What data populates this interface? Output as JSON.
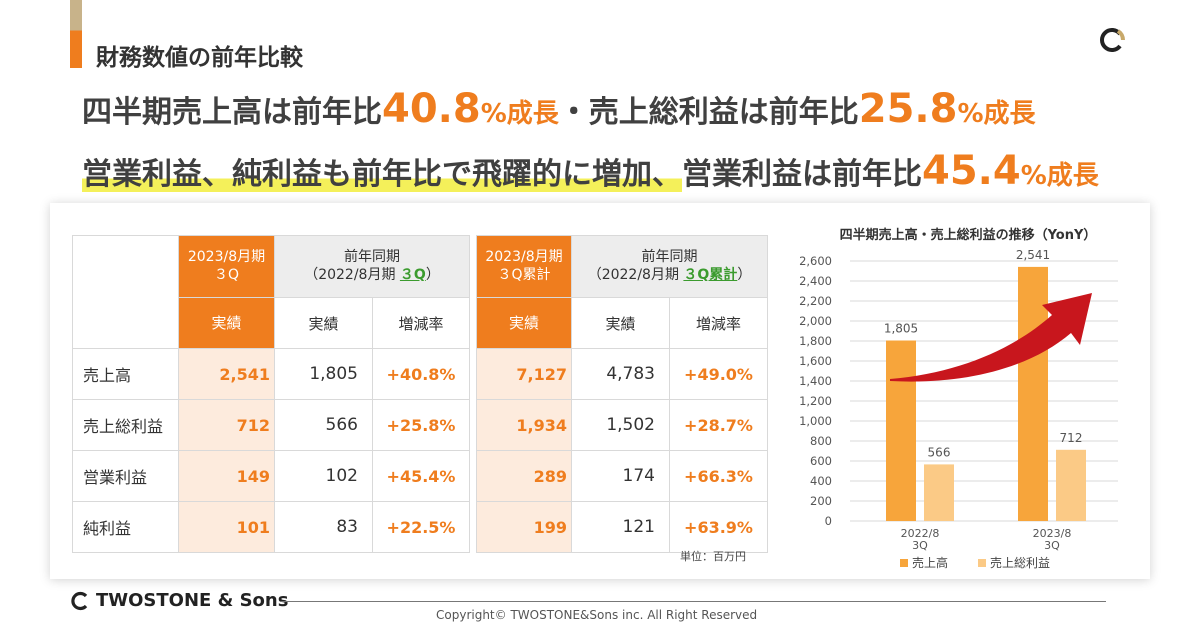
{
  "header": {
    "section_title": "財務数値の前年比較"
  },
  "headline1": {
    "part1": "四半期売上高は前年比",
    "value1": "40.8",
    "suffix1": "%成長",
    "part2": "・売上総利益は前年比",
    "value2": "25.8",
    "suffix2": "%成長"
  },
  "headline2": {
    "part1": "営業利益、純利益も前年比で飛躍的に増加、",
    "part2": "営業利益は前年比",
    "value": "45.4",
    "suffix": "%成長"
  },
  "table1": {
    "cur_header_line1": "2023/8月期",
    "cur_header_line2": "３Q",
    "prev_header_line1": "前年同期",
    "prev_header_pre": "（2022/8月期 ",
    "prev_header_green": "３Q",
    "prev_header_post": "）",
    "col_actual": "実績",
    "col_actual2": "実績",
    "col_change": "増減率",
    "rows": [
      {
        "label": "売上高",
        "cur": "2,541",
        "prev": "1,805",
        "chg": "+40.8%"
      },
      {
        "label": "売上総利益",
        "cur": "712",
        "prev": "566",
        "chg": "+25.8%"
      },
      {
        "label": "営業利益",
        "cur": "149",
        "prev": "102",
        "chg": "+45.4%"
      },
      {
        "label": "純利益",
        "cur": "101",
        "prev": "83",
        "chg": "+22.5%"
      }
    ]
  },
  "table2": {
    "cur_header_line1": "2023/8月期",
    "cur_header_line2": "３Q累計",
    "prev_header_line1": "前年同期",
    "prev_header_pre": "（2022/8月期 ",
    "prev_header_green": "３Q累計",
    "prev_header_post": "）",
    "col_actual": "実績",
    "col_actual2": "実績",
    "col_change": "増減率",
    "rows": [
      {
        "cur": "7,127",
        "prev": "4,783",
        "chg": "+49.0%"
      },
      {
        "cur": "1,934",
        "prev": "1,502",
        "chg": "+28.7%"
      },
      {
        "cur": "289",
        "prev": "174",
        "chg": "+66.3%"
      },
      {
        "cur": "199",
        "prev": "121",
        "chg": "+63.9%"
      }
    ]
  },
  "unit_note": "単位：百万円",
  "chart_data": {
    "type": "bar",
    "title": "四半期売上高・売上総利益の推移（YonY）",
    "categories": [
      [
        "2022/8",
        "3Q"
      ],
      [
        "2023/8",
        "3Q"
      ]
    ],
    "series": [
      {
        "name": "売上高",
        "values": [
          1805,
          2541
        ],
        "color": "#f7a53b"
      },
      {
        "name": "売上総利益",
        "values": [
          566,
          712
        ],
        "color": "#fbca86"
      }
    ],
    "data_labels": [
      [
        "1,805",
        "2,541"
      ],
      [
        "566",
        "712"
      ]
    ],
    "ylim": [
      0,
      2600
    ],
    "yticks": [
      0,
      200,
      400,
      600,
      800,
      1000,
      1200,
      1400,
      1600,
      1800,
      2000,
      2200,
      2400,
      2600
    ],
    "ytick_labels": [
      "0",
      "200",
      "400",
      "600",
      "800",
      "1,000",
      "1,200",
      "1,400",
      "1,600",
      "1,800",
      "2,000",
      "2,200",
      "2,400",
      "2,600"
    ],
    "grid": true,
    "legend": "bottom",
    "arrow_color": "#c8161d"
  },
  "footer": {
    "brand": "TWOSTONE & Sons",
    "copyright": "Copyright© TWOSTONE&Sons inc. All Right Reserved"
  },
  "colors": {
    "accent": "#ef7d1e",
    "highlight": "#f4f05a",
    "green": "#3b9b2e"
  }
}
